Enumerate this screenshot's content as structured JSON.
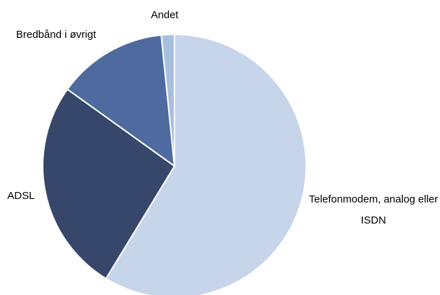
{
  "chart_data": {
    "type": "pie",
    "categories": [
      "Telefonmodem, analog eller ISDN",
      "ADSL",
      "Bredbånd i øvrigt",
      "Andet"
    ],
    "values": [
      58.7,
      26.2,
      13.5,
      1.6
    ],
    "colors": [
      "#c6d5ea",
      "#37476b",
      "#4e6a9e",
      "#a9bfdf"
    ]
  }
}
